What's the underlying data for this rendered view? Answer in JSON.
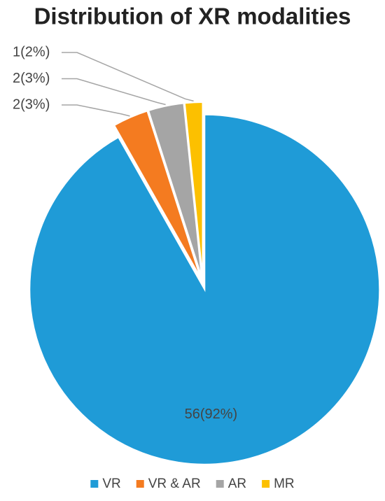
{
  "chart_data": {
    "type": "pie",
    "title": "Distribution of XR modalities",
    "categories": [
      "VR",
      "VR & AR",
      "AR",
      "MR"
    ],
    "values": [
      56,
      2,
      2,
      1
    ],
    "value_labels": [
      "56(92%)",
      "2(3%)",
      "2(3%)",
      "1(2%)"
    ],
    "colors": [
      "#1f9bd7",
      "#f47b20",
      "#a5a5a5",
      "#fcc000"
    ],
    "legend": "bottom"
  }
}
